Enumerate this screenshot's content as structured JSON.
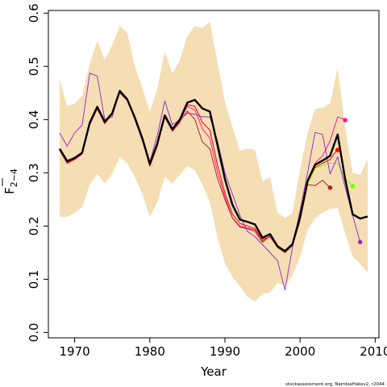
{
  "chart_data": {
    "type": "line",
    "xlabel": "Year",
    "ylabel": "F",
    "ylabel_subscript": "2−4",
    "xlim": [
      1966.5,
      2010.5
    ],
    "ylim": [
      -0.01,
      0.605
    ],
    "xticks": [
      1970,
      1980,
      1990,
      2000,
      2010
    ],
    "yticks": [
      0.0,
      0.1,
      0.2,
      0.3,
      0.4,
      0.5,
      0.6
    ],
    "ytick_labels": [
      "0.0",
      "0.1",
      "0.2",
      "0.3",
      "0.4",
      "0.5",
      "0.6"
    ],
    "grid": false,
    "credit": "stockassessment.org, NambiaHakev2, r2044",
    "band": {
      "color": "#f5deb3",
      "x": [
        1968,
        1969,
        1970,
        1971,
        1972,
        1973,
        1974,
        1975,
        1976,
        1977,
        1978,
        1979,
        1980,
        1981,
        1982,
        1983,
        1984,
        1985,
        1986,
        1987,
        1988,
        1989,
        1990,
        1991,
        1992,
        1993,
        1994,
        1995,
        1996,
        1997,
        1998,
        1999,
        2000,
        2001,
        2002,
        2003,
        2004,
        2005,
        2006,
        2007,
        2008,
        2009
      ],
      "upper": [
        0.475,
        0.425,
        0.43,
        0.445,
        0.505,
        0.548,
        0.512,
        0.54,
        0.576,
        0.563,
        0.5,
        0.46,
        0.415,
        0.458,
        0.528,
        0.487,
        0.512,
        0.557,
        0.576,
        0.572,
        0.584,
        0.508,
        0.433,
        0.386,
        0.341,
        0.346,
        0.343,
        0.284,
        0.292,
        0.225,
        0.215,
        0.225,
        0.307,
        0.375,
        0.42,
        0.422,
        0.43,
        0.498,
        0.385,
        0.3,
        0.296,
        0.325
      ],
      "lower": [
        0.217,
        0.217,
        0.225,
        0.235,
        0.278,
        0.298,
        0.28,
        0.298,
        0.33,
        0.318,
        0.292,
        0.26,
        0.217,
        0.244,
        0.293,
        0.28,
        0.296,
        0.313,
        0.305,
        0.278,
        0.245,
        0.178,
        0.13,
        0.104,
        0.087,
        0.067,
        0.058,
        0.073,
        0.075,
        0.093,
        0.088,
        0.107,
        0.142,
        0.193,
        0.215,
        0.225,
        0.232,
        0.234,
        0.186,
        0.143,
        0.129,
        0.112
      ]
    },
    "series": [
      {
        "color": "#000000",
        "width": 2.4,
        "x": [
          1968,
          1969,
          1970,
          1971,
          1972,
          1973,
          1974,
          1975,
          1976,
          1977,
          1978,
          1979,
          1980,
          1981,
          1982,
          1983,
          1984,
          1985,
          1986,
          1987,
          1988,
          1989,
          1990,
          1991,
          1992,
          1993,
          1994,
          1995,
          1996,
          1997,
          1998,
          1999,
          2000,
          2001,
          2002,
          2003,
          2004,
          2005,
          2006,
          2007,
          2008,
          2009
        ],
        "values": [
          0.345,
          0.322,
          0.328,
          0.338,
          0.394,
          0.424,
          0.396,
          0.412,
          0.454,
          0.438,
          0.404,
          0.365,
          0.317,
          0.355,
          0.408,
          0.382,
          0.4,
          0.432,
          0.437,
          0.421,
          0.415,
          0.352,
          0.288,
          0.24,
          0.212,
          0.208,
          0.203,
          0.178,
          0.185,
          0.162,
          0.153,
          0.166,
          0.218,
          0.285,
          0.315,
          0.323,
          0.332,
          0.372,
          0.288,
          0.222,
          0.214,
          0.218
        ]
      },
      {
        "color": "#ff0000",
        "width": 1.0,
        "x": [
          1968,
          1969,
          1970,
          1971,
          1972,
          1973,
          1974,
          1975,
          1976,
          1977,
          1978,
          1979,
          1980,
          1981,
          1982,
          1983,
          1984,
          1985,
          1986,
          1987,
          1988,
          1989,
          1990,
          1991,
          1992,
          1993,
          1994,
          1995,
          1996,
          1997,
          1998,
          1999,
          2000,
          2001,
          2002,
          2003,
          2004,
          2005
        ],
        "values": [
          0.342,
          0.318,
          0.325,
          0.335,
          0.39,
          0.42,
          0.392,
          0.41,
          0.452,
          0.436,
          0.4,
          0.362,
          0.312,
          0.35,
          0.405,
          0.378,
          0.395,
          0.428,
          0.425,
          0.395,
          0.38,
          0.315,
          0.262,
          0.222,
          0.205,
          0.2,
          0.195,
          0.175,
          0.18,
          0.16,
          0.15,
          0.165,
          0.215,
          0.28,
          0.31,
          0.318,
          0.325,
          0.345
        ]
      },
      {
        "color": "#7cfc00",
        "width": 1.0,
        "x": [
          1994,
          1995,
          1996,
          1997,
          1998,
          1999,
          2000,
          2001,
          2002,
          2003,
          2004,
          2005,
          2006,
          2007
        ],
        "values": [
          0.19,
          0.168,
          0.182,
          0.165,
          0.152,
          0.163,
          0.212,
          0.278,
          0.308,
          0.314,
          0.318,
          0.318,
          0.29,
          0.275
        ]
      },
      {
        "color": "#ff1493",
        "width": 1.0,
        "x": [
          1968,
          1969,
          1970,
          1971,
          1972,
          1973,
          1974,
          1975,
          1976,
          1977,
          1978,
          1979,
          1980,
          1981,
          1982,
          1983,
          1984,
          1985,
          1986,
          1987,
          1988,
          1989,
          1990,
          1991,
          1992,
          1993,
          1994,
          1995,
          1996,
          1997,
          1998,
          1999,
          2000,
          2001,
          2002,
          2003,
          2004,
          2005,
          2006
        ],
        "values": [
          0.345,
          0.32,
          0.326,
          0.336,
          0.392,
          0.422,
          0.394,
          0.411,
          0.452,
          0.437,
          0.402,
          0.364,
          0.314,
          0.352,
          0.406,
          0.38,
          0.398,
          0.425,
          0.418,
          0.383,
          0.365,
          0.302,
          0.255,
          0.215,
          0.2,
          0.196,
          0.193,
          0.172,
          0.18,
          0.162,
          0.152,
          0.165,
          0.212,
          0.285,
          0.318,
          0.332,
          0.36,
          0.405,
          0.4
        ]
      },
      {
        "color": "#b22222",
        "width": 1.0,
        "x": [
          1968,
          1969,
          1970,
          1971,
          1972,
          1973,
          1974,
          1975,
          1976,
          1977,
          1978,
          1979,
          1980,
          1981,
          1982,
          1983,
          1984,
          1985,
          1986,
          1987,
          1988,
          1989,
          1990,
          1991,
          1992,
          1993,
          1994,
          1995,
          1996,
          1997,
          1998,
          1999,
          2000,
          2001,
          2002,
          2003,
          2004
        ],
        "values": [
          0.343,
          0.319,
          0.326,
          0.336,
          0.391,
          0.421,
          0.393,
          0.41,
          0.45,
          0.436,
          0.401,
          0.363,
          0.313,
          0.351,
          0.404,
          0.379,
          0.397,
          0.416,
          0.4,
          0.358,
          0.345,
          0.29,
          0.25,
          0.215,
          0.198,
          0.195,
          0.19,
          0.17,
          0.182,
          0.16,
          0.15,
          0.163,
          0.21,
          0.278,
          0.276,
          0.286,
          0.272
        ]
      },
      {
        "color": "#9932cc",
        "width": 1.0,
        "x": [
          1968,
          1969,
          1970,
          1971,
          1972,
          1973,
          1974,
          1975,
          1976,
          1977,
          1978,
          1979,
          1980,
          1981,
          1982,
          1983,
          1984,
          1985,
          1986,
          1987,
          1988,
          1989,
          1990,
          1991,
          1992,
          1993,
          1994,
          1995,
          1996,
          1997,
          1998,
          1999,
          2000,
          2001,
          2002,
          2003,
          2004,
          2005,
          2006,
          2007,
          2008
        ],
        "values": [
          0.375,
          0.35,
          0.375,
          0.39,
          0.487,
          0.482,
          0.4,
          0.405,
          0.455,
          0.44,
          0.4,
          0.36,
          0.32,
          0.37,
          0.435,
          0.39,
          0.4,
          0.412,
          0.41,
          0.405,
          0.405,
          0.36,
          0.3,
          0.26,
          0.22,
          0.19,
          0.18,
          0.165,
          0.15,
          0.135,
          0.08,
          0.16,
          0.23,
          0.3,
          0.376,
          0.372,
          0.298,
          0.33,
          0.273,
          0.22,
          0.17
        ]
      }
    ],
    "endpoints": [
      {
        "color": "#ff0000",
        "x": 2005,
        "value": 0.343
      },
      {
        "color": "#7cfc00",
        "x": 2007,
        "value": 0.275
      },
      {
        "color": "#ff1493",
        "x": 2006,
        "value": 0.399
      },
      {
        "color": "#b22222",
        "x": 2004,
        "value": 0.272
      },
      {
        "color": "#9932cc",
        "x": 2008,
        "value": 0.17
      }
    ]
  }
}
